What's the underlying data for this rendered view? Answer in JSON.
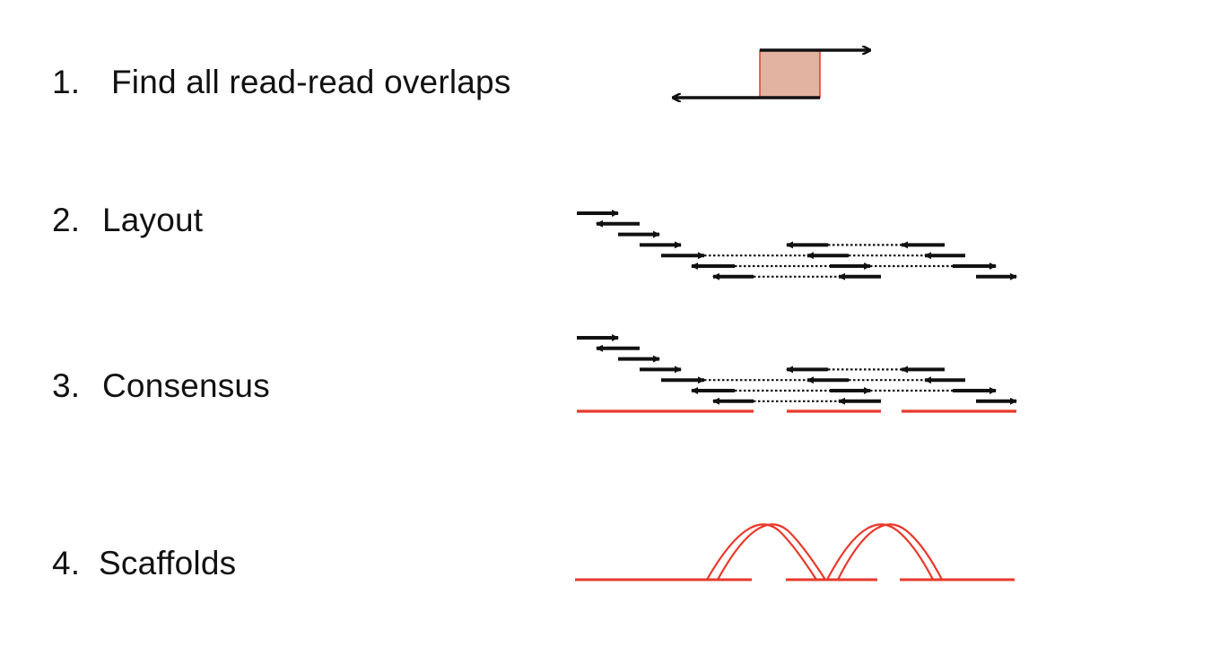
{
  "steps": [
    {
      "number": "1.",
      "label": "Find all read-read overlaps"
    },
    {
      "number": "2.",
      "label": "Layout"
    },
    {
      "number": "3.",
      "label": "Consensus"
    },
    {
      "number": "4.",
      "label": "Scaffolds"
    }
  ],
  "colors": {
    "text": "#111111",
    "read_arrow": "#111111",
    "contig_line": "#e8392b",
    "overlap_fill": "#e2b3a0",
    "overlap_border": "#e8392b"
  },
  "stages": {
    "overlap": "two reads with a shaded overlapping region",
    "layout": "overlapping forward and reverse reads linked by dotted mate-pair lines",
    "consensus": "same read layout with three red contig lines underneath",
    "scaffolds": "three red contigs joined by arched links"
  }
}
